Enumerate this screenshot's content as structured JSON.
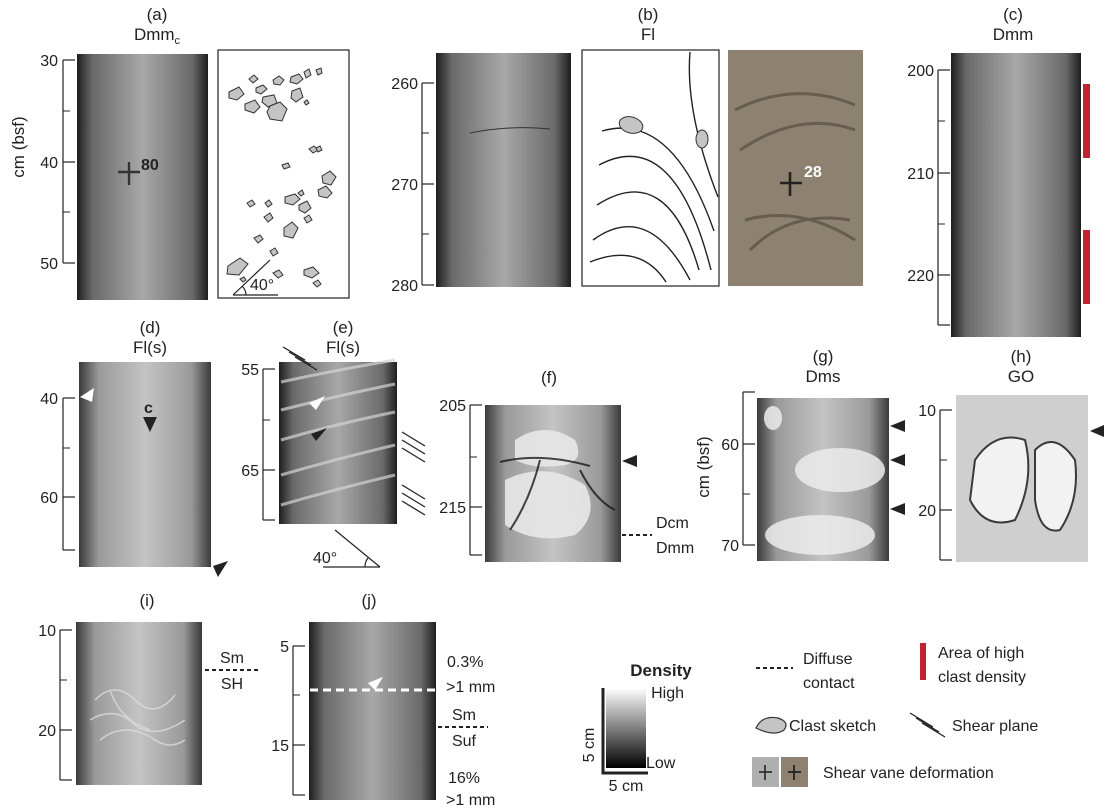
{
  "panels": {
    "a": {
      "label": "(a)",
      "code_main": "Dmm",
      "code_sub": "c",
      "axis_title": "cm (bsf)",
      "ticks": [
        "30",
        "40",
        "50"
      ],
      "vane_value": "80",
      "angle": "40°"
    },
    "b": {
      "label": "(b)",
      "code": "Fl",
      "ticks": [
        "260",
        "270",
        "280"
      ],
      "vane_value": "28"
    },
    "c": {
      "label": "(c)",
      "code": "Dmm",
      "ticks": [
        "200",
        "210",
        "220"
      ]
    },
    "d": {
      "label": "(d)",
      "code": "Fl(s)",
      "ticks": [
        "40",
        "60"
      ],
      "marker": "c"
    },
    "e": {
      "label": "(e)",
      "code": "Fl(s)",
      "ticks": [
        "55",
        "65"
      ],
      "angle": "40°"
    },
    "f": {
      "label": "(f)",
      "ticks": [
        "205",
        "215"
      ],
      "contact_upper": "Dcm",
      "contact_lower": "Dmm"
    },
    "g": {
      "label": "(g)",
      "code": "Dms",
      "axis_title": "cm (bsf)",
      "ticks": [
        "60",
        "70"
      ]
    },
    "h": {
      "label": "(h)",
      "code": "GO",
      "ticks": [
        "10",
        "20"
      ]
    },
    "i": {
      "label": "(i)",
      "ticks": [
        "10",
        "20"
      ],
      "contact_upper": "Sm",
      "contact_lower": "SH"
    },
    "j": {
      "label": "(j)",
      "ticks": [
        "5",
        "15"
      ],
      "upper_pct": "0.3%",
      "upper_size": ">1 mm",
      "contact_upper": "Sm",
      "contact_lower": "Suf",
      "lower_pct": "16%",
      "lower_size": ">1 mm"
    }
  },
  "density_scale": {
    "title": "Density",
    "high": "High",
    "low": "Low",
    "scale_v": "5 cm",
    "scale_h": "5 cm"
  },
  "legend": {
    "diffuse_line1": "Diffuse",
    "diffuse_line2": "contact",
    "area_line1": "Area of high",
    "area_line2": "clast density",
    "clast": "Clast sketch",
    "shear": "Shear plane",
    "vane": "Shear vane deformation"
  },
  "colors": {
    "high_density_bar": "#c8202e",
    "clast_fill": "#c4c4c4",
    "vane_photo": "#8d8270"
  }
}
